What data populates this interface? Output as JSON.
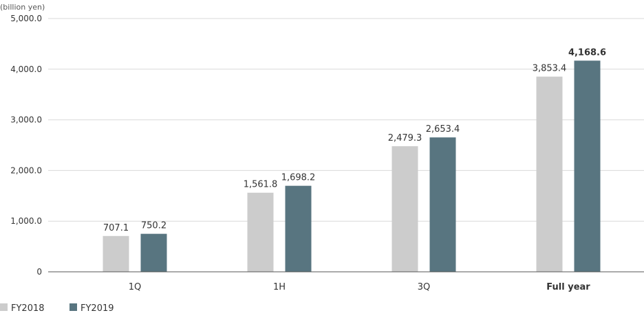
{
  "chart_data": {
    "type": "bar",
    "unit_label": "(billion yen)",
    "categories": [
      "1Q",
      "1H",
      "3Q",
      "Full year"
    ],
    "highlight_category": "Full year",
    "highlight_series": "FY2019",
    "series": [
      {
        "name": "FY2018",
        "color": "#cccccc",
        "values": [
          707.1,
          1561.8,
          2479.3,
          3853.4
        ],
        "labels": [
          "707.1",
          "1,561.8",
          "2,479.3",
          "3,853.4"
        ]
      },
      {
        "name": "FY2019",
        "color": "#587580",
        "values": [
          750.2,
          1698.2,
          2653.4,
          4168.6
        ],
        "labels": [
          "750.2",
          "1,698.2",
          "2,653.4",
          "4,168.6"
        ]
      }
    ],
    "ylim": [
      0,
      5000
    ],
    "yticks": [
      0,
      1000,
      2000,
      3000,
      4000,
      5000
    ],
    "ytick_labels": [
      "0",
      "1,000.0",
      "2,000.0",
      "3,000.0",
      "4,000.0",
      "5,000.0"
    ],
    "grid": true,
    "legend_position": "bottom-left",
    "colors": {
      "highlight_text": "#587580",
      "grid": "#d9d9d9",
      "axis": "#555555",
      "text": "#333333"
    }
  }
}
